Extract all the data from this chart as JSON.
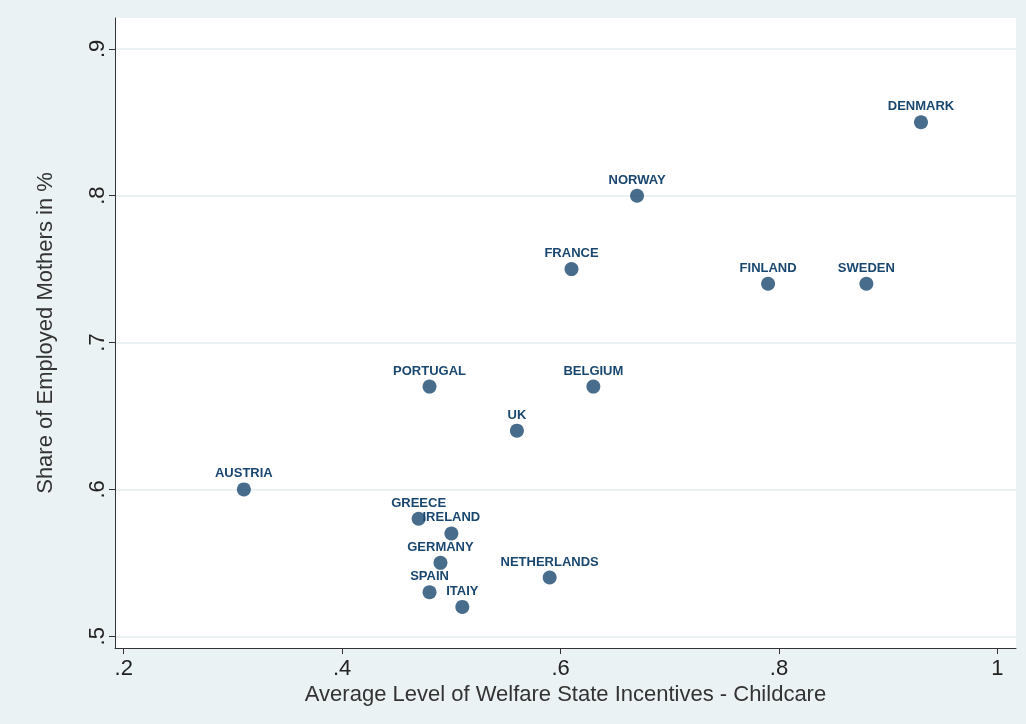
{
  "chart_data": {
    "type": "scatter",
    "xlabel": "Average Level of Welfare State Incentives - Childcare",
    "ylabel": "Share of Employed Mothers in %",
    "x": [
      0.93,
      0.67,
      0.61,
      0.79,
      0.88,
      0.48,
      0.63,
      0.56,
      0.31,
      0.47,
      0.5,
      0.49,
      0.59,
      0.48,
      0.51
    ],
    "series": [
      {
        "color": "#1a476f",
        "values": [
          0.85,
          0.8,
          0.75,
          0.74,
          0.74,
          0.67,
          0.67,
          0.64,
          0.6,
          0.58,
          0.57,
          0.55,
          0.54,
          0.53,
          0.52
        ]
      }
    ],
    "annotations": [
      {
        "text": "DENMARK",
        "x": 0.93,
        "y": 0.85
      },
      {
        "text": "NORWAY",
        "x": 0.67,
        "y": 0.8
      },
      {
        "text": "FRANCE",
        "x": 0.61,
        "y": 0.75
      },
      {
        "text": "FINLAND",
        "x": 0.79,
        "y": 0.74
      },
      {
        "text": "SWEDEN",
        "x": 0.88,
        "y": 0.74
      },
      {
        "text": "PORTUGAL",
        "x": 0.48,
        "y": 0.67
      },
      {
        "text": "BELGIUM",
        "x": 0.63,
        "y": 0.67
      },
      {
        "text": "UK",
        "x": 0.56,
        "y": 0.64
      },
      {
        "text": "AUSTRIA",
        "x": 0.31,
        "y": 0.6
      },
      {
        "text": "GREECE",
        "x": 0.47,
        "y": 0.58
      },
      {
        "text": "IRELAND",
        "x": 0.5,
        "y": 0.57
      },
      {
        "text": "GERMANY",
        "x": 0.49,
        "y": 0.55
      },
      {
        "text": "NETHERLANDS",
        "x": 0.59,
        "y": 0.54
      },
      {
        "text": "SPAIN",
        "x": 0.48,
        "y": 0.53
      },
      {
        "text": "ITAIY",
        "x": 0.51,
        "y": 0.52
      }
    ],
    "xlim": [
      0.192,
      1.017
    ],
    "xticks": [
      {
        "value": 0.2,
        "label": ".2"
      },
      {
        "value": 0.4,
        "label": ".4"
      },
      {
        "value": 0.6,
        "label": ".6"
      },
      {
        "value": 0.8,
        "label": ".8"
      },
      1
    ],
    "ylim": [
      0.492,
      0.921
    ],
    "yticks": [
      {
        "value": 0.5,
        "label": ".5"
      },
      {
        "value": 0.6,
        "label": ".6"
      },
      {
        "value": 0.7,
        "label": ".7"
      },
      {
        "value": 0.8,
        "label": ".8"
      },
      {
        "value": 0.9,
        "label": ".9"
      }
    ],
    "grid": "y",
    "marker": "circle"
  }
}
